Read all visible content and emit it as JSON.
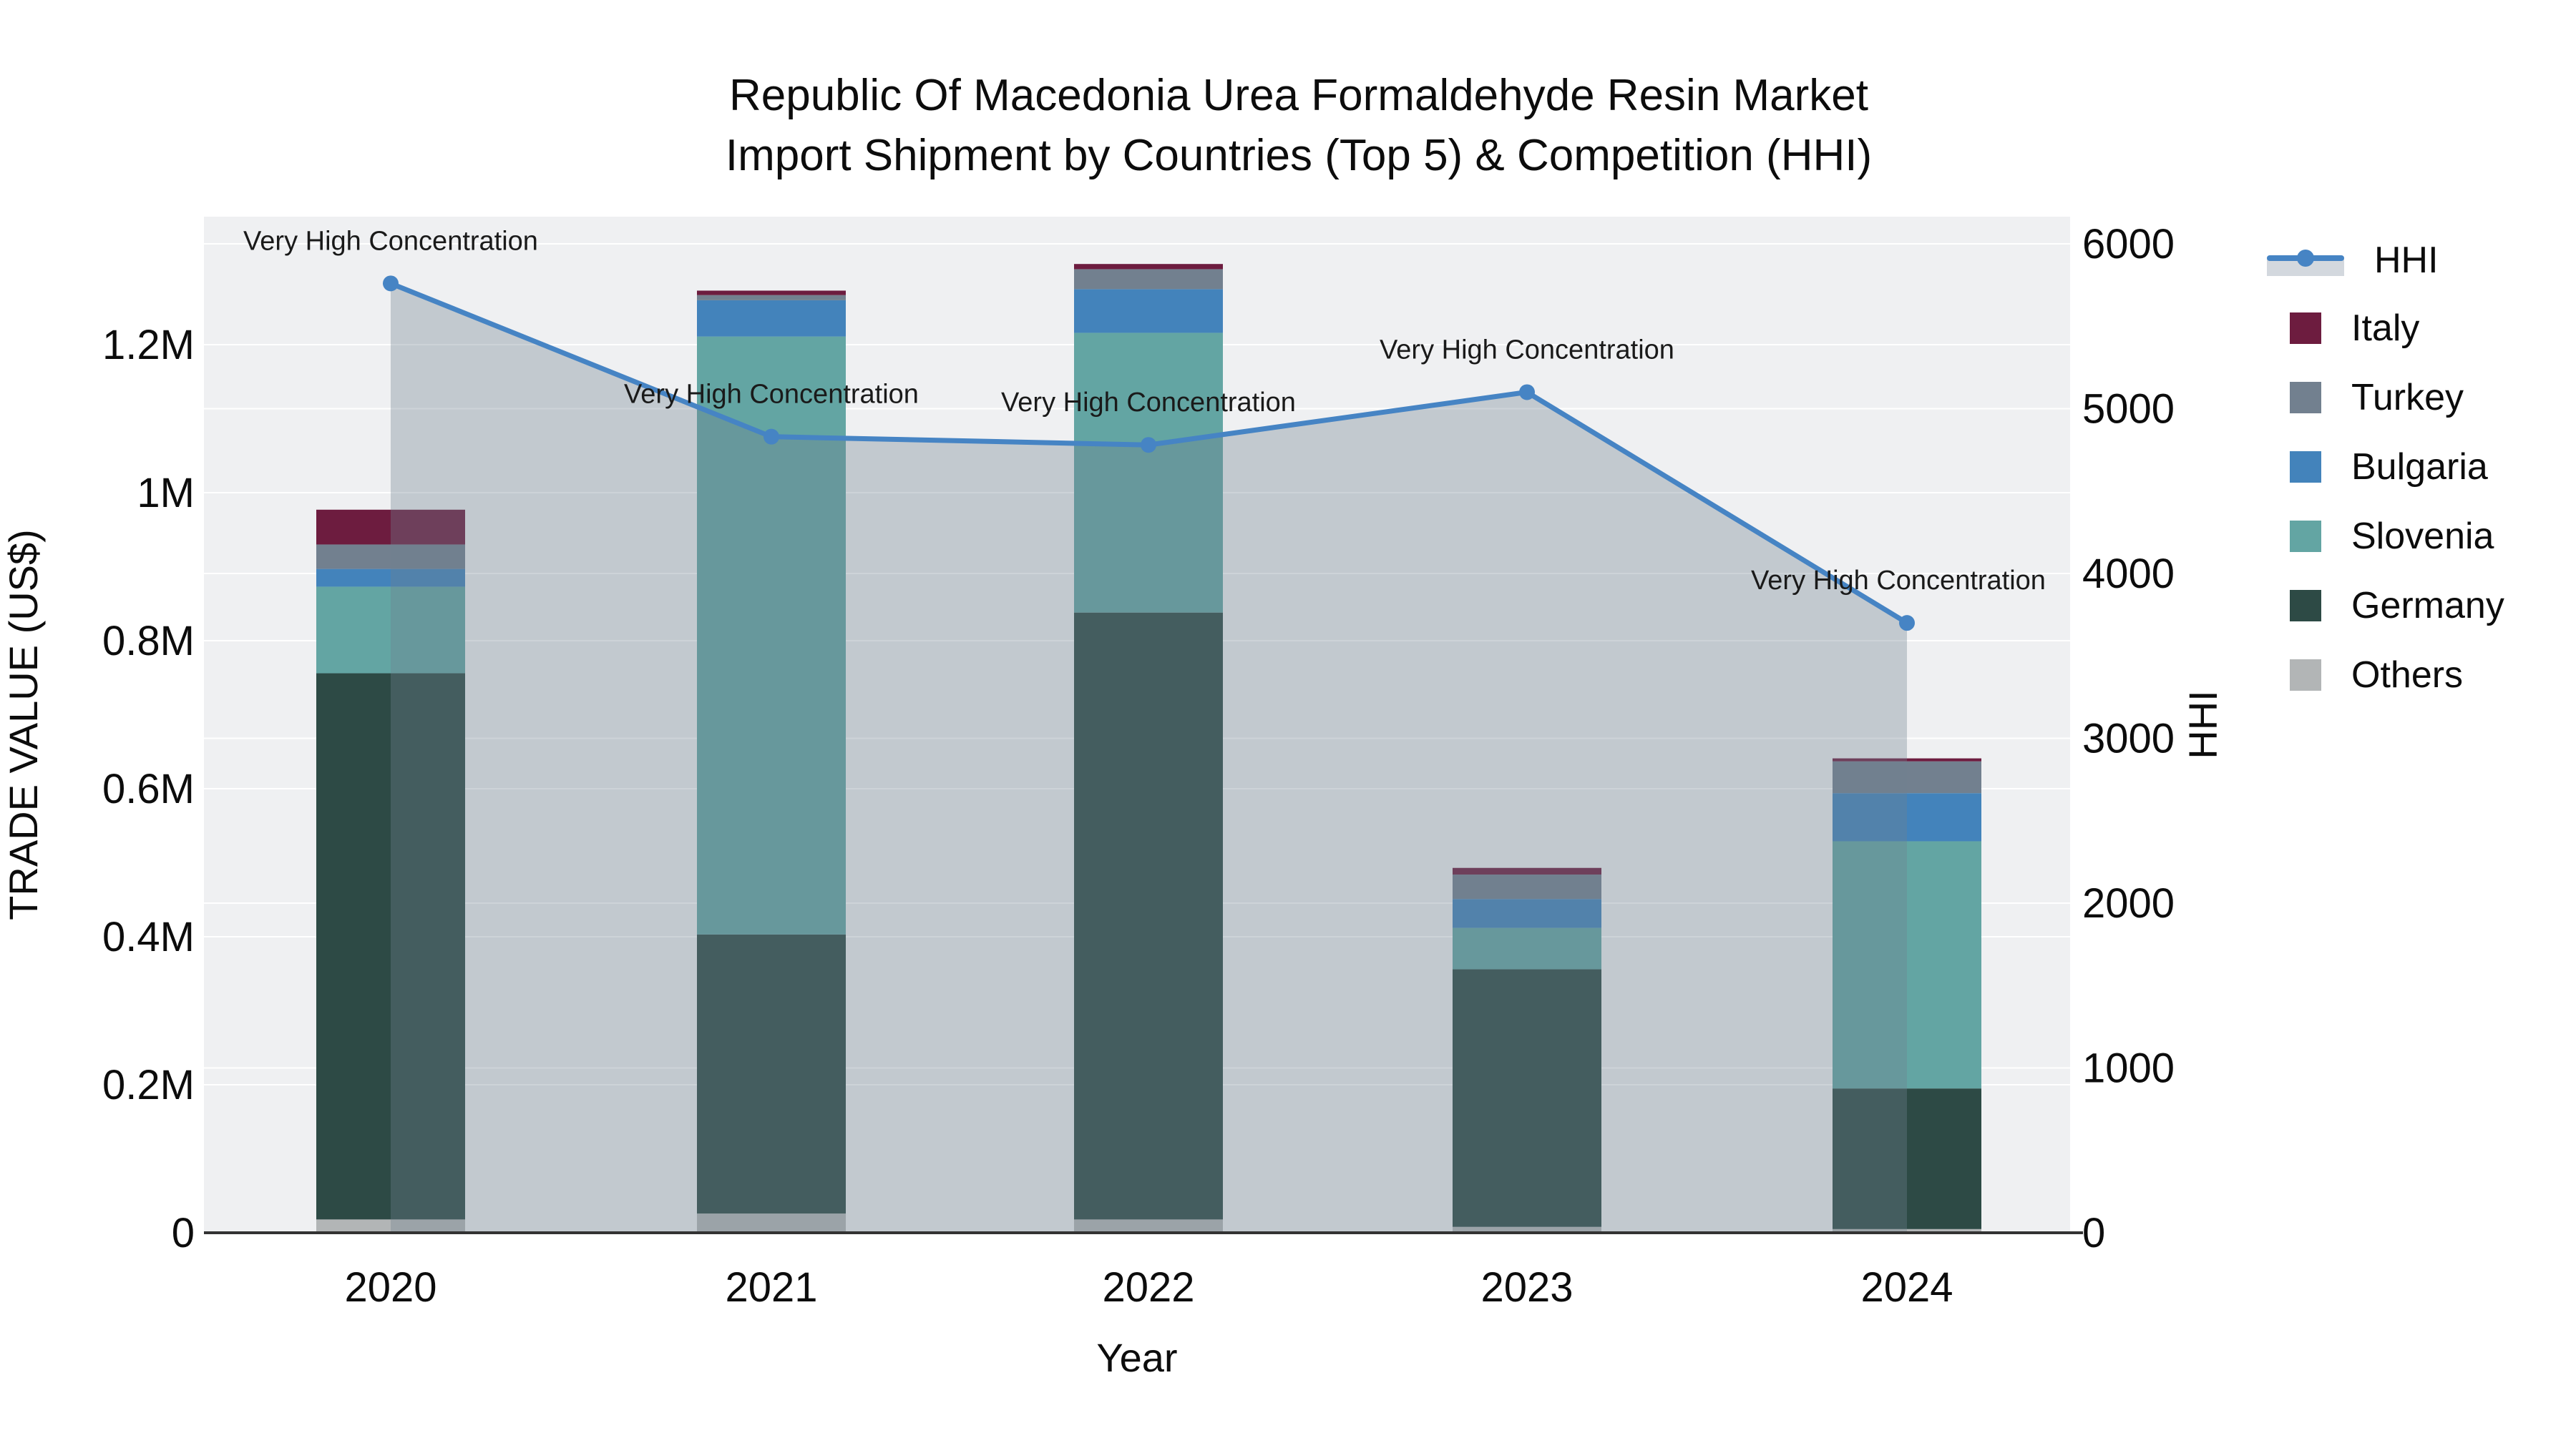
{
  "title": {
    "line1": "Republic Of Macedonia Urea Formaldehyde Resin Market",
    "line2": "Import Shipment by Countries (Top 5) & Competition (HHI)"
  },
  "axes": {
    "x": {
      "title": "Year",
      "categories": [
        "2020",
        "2021",
        "2022",
        "2023",
        "2024"
      ]
    },
    "left": {
      "title": "TRADE VALUE (US$)",
      "tick_labels": [
        "0",
        "0.2M",
        "0.4M",
        "0.6M",
        "0.8M",
        "1M",
        "1.2M"
      ],
      "tick_values": [
        0,
        200000,
        400000,
        600000,
        800000,
        1000000,
        1200000
      ]
    },
    "right": {
      "title": "HHI",
      "tick_labels": [
        "0",
        "1000",
        "2000",
        "3000",
        "4000",
        "5000",
        "6000"
      ],
      "tick_values": [
        0,
        1000,
        2000,
        3000,
        4000,
        5000,
        6000
      ]
    }
  },
  "legend": [
    {
      "id": "hhi",
      "label": "HHI",
      "type": "line",
      "color": "#4684c4"
    },
    {
      "id": "italy",
      "label": "Italy",
      "type": "swatch",
      "color": "#6d1c3f"
    },
    {
      "id": "turkey",
      "label": "Turkey",
      "type": "swatch",
      "color": "#72808f"
    },
    {
      "id": "bulgaria",
      "label": "Bulgaria",
      "type": "swatch",
      "color": "#4383bb"
    },
    {
      "id": "slovenia",
      "label": "Slovenia",
      "type": "swatch",
      "color": "#63a5a3"
    },
    {
      "id": "germany",
      "label": "Germany",
      "type": "swatch",
      "color": "#2d4a45"
    },
    {
      "id": "others",
      "label": "Others",
      "type": "swatch",
      "color": "#b2b5b6"
    }
  ],
  "chart_data": {
    "type": [
      "bar",
      "line"
    ],
    "title": "Republic Of Macedonia Urea Formaldehyde Resin Market Import Shipment by Countries (Top 5) & Competition (HHI)",
    "xlabel": "Year",
    "ylabel_left": "TRADE VALUE (US$)",
    "ylabel_right": "HHI",
    "categories": [
      2020,
      2021,
      2022,
      2023,
      2024
    ],
    "bar_mode": "stacked",
    "stack_order_bottom_to_top": [
      "Others",
      "Germany",
      "Slovenia",
      "Bulgaria",
      "Turkey",
      "Italy"
    ],
    "series": [
      {
        "name": "Others",
        "color": "#b2b5b6",
        "values": [
          18000,
          26000,
          18000,
          8000,
          5000
        ]
      },
      {
        "name": "Germany",
        "color": "#2d4a45",
        "values": [
          738000,
          377000,
          820000,
          348000,
          190000
        ]
      },
      {
        "name": "Slovenia",
        "color": "#63a5a3",
        "values": [
          117000,
          808000,
          378000,
          56000,
          334000
        ]
      },
      {
        "name": "Bulgaria",
        "color": "#4383bb",
        "values": [
          24000,
          49000,
          59000,
          39000,
          65000
        ]
      },
      {
        "name": "Turkey",
        "color": "#72808f",
        "values": [
          33000,
          7000,
          27000,
          33000,
          43000
        ]
      },
      {
        "name": "Italy",
        "color": "#6d1c3f",
        "values": [
          47000,
          6000,
          7000,
          9000,
          4000
        ]
      }
    ],
    "line_series": {
      "name": "HHI",
      "color": "#4684c4",
      "area_fill": "rgba(112,128,144,0.35)",
      "values": [
        5760,
        4830,
        4780,
        5100,
        3700
      ],
      "axis": "right"
    },
    "annotations": [
      {
        "text": "Very High Concentration",
        "x": 2020
      },
      {
        "text": "Very High Concentration",
        "x": 2021
      },
      {
        "text": "Very High Concentration",
        "x": 2022
      },
      {
        "text": "Very High Concentration",
        "x": 2023
      },
      {
        "text": "Very High Concentration",
        "x": 2024
      }
    ],
    "ylim_left": [
      0,
      1375000
    ],
    "ylim_right": [
      0,
      6165
    ],
    "grid": true,
    "legend_position": "right"
  },
  "style": {
    "plot_bg": "#eff0f2",
    "grid_color": "#ffffff",
    "axis_line_color": "#333333",
    "text_color": "#0c0c0c",
    "annotation_color": "#1a1a1a"
  }
}
